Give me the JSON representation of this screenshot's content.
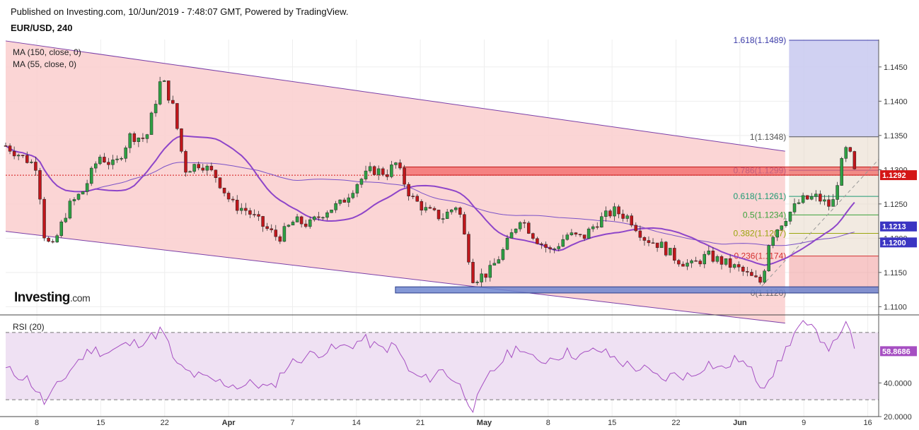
{
  "header": {
    "published": "Published on Investing.com, 10/Jun/2019 - 7:48:07 GMT, Powered by TradingView.",
    "symbol": "EUR/USD, 240"
  },
  "legend": {
    "ma150": "MA (150, close, 0)",
    "ma55": "MA (55, close, 0)",
    "rsi": "RSI (20)"
  },
  "logo": {
    "brand": "Investing",
    "suffix": ".com",
    "icon": "investing-logo-icon"
  },
  "colors": {
    "bull": "#2ea043",
    "bear": "#c0161b",
    "channel_fill": "#fbd0d0",
    "channel_line": "#7b3fa8",
    "ma150": "#7b52c7",
    "ma55": "#8e45c9",
    "fib_box": "#c8c9f0",
    "rsi_line": "#a64fc2",
    "rsi_band": "#efe1f3"
  },
  "chart_data": {
    "type": "candlestick",
    "instrument": "EUR/USD",
    "timeframe": "240",
    "price_axis": {
      "ticks": [
        1.11,
        1.115,
        1.12,
        1.125,
        1.13,
        1.135,
        1.14,
        1.145
      ],
      "tick_labels": [
        "1.1100",
        "1.1150",
        "1.1200",
        "1.1250",
        "1.1300",
        "1.1350",
        "1.1400",
        "1.1450"
      ],
      "range": [
        1.1088,
        1.149
      ]
    },
    "x_axis_labels": [
      "8",
      "15",
      "22",
      "Apr",
      "7",
      "14",
      "21",
      "May",
      "8",
      "15",
      "22",
      "Jun",
      "9",
      "16"
    ],
    "price_badges": [
      {
        "label": "1.1292",
        "value": 1.1292,
        "color": "#d41616"
      },
      {
        "label": "1.1213",
        "value": 1.1213,
        "color": "#3b35c2"
      },
      {
        "label": "1.1200",
        "value": 1.12,
        "color": "#3b35c2"
      }
    ],
    "fibonacci": [
      {
        "label": "1.618(1.1489)",
        "value": 1.1489,
        "color": "#3b3ba8"
      },
      {
        "label": "1(1.1348)",
        "value": 1.1348,
        "color": "#555555"
      },
      {
        "label": "0.786(1.1299)",
        "value": 1.1299,
        "color": "#8888cc"
      },
      {
        "label": "0.618(1.1261)",
        "value": 1.1261,
        "color": "#1e9b73"
      },
      {
        "label": "0.5(1.1234)",
        "value": 1.1234,
        "color": "#3aa23a"
      },
      {
        "label": "0.382(1.1207)",
        "value": 1.1207,
        "color": "#9aa50c"
      },
      {
        "label": "0.236(1.1174)",
        "value": 1.1174,
        "color": "#d43030"
      },
      {
        "label": "0(1.1120)",
        "value": 1.112,
        "color": "#666666"
      }
    ],
    "support_zone": [
      1.112,
      1.1129
    ],
    "resistance_zone": [
      1.1292,
      1.1304
    ],
    "close_line": 1.1292,
    "channel": {
      "upper": [
        [
          0,
          1.1488
        ],
        [
          100,
          1.1327
        ]
      ],
      "lower": [
        [
          0,
          1.121
        ],
        [
          100,
          1.1076
        ]
      ]
    },
    "close_path": [
      [
        0,
        1.1335
      ],
      [
        2,
        1.132
      ],
      [
        4,
        1.1305
      ],
      [
        5,
        1.12
      ],
      [
        6,
        1.1185
      ],
      [
        8,
        1.1245
      ],
      [
        10,
        1.127
      ],
      [
        12,
        1.132
      ],
      [
        14,
        1.1305
      ],
      [
        16,
        1.135
      ],
      [
        18,
        1.1345
      ],
      [
        20,
        1.1435
      ],
      [
        21.5,
        1.139
      ],
      [
        23,
        1.13
      ],
      [
        25,
        1.131
      ],
      [
        27,
        1.129
      ],
      [
        29,
        1.125
      ],
      [
        31,
        1.124
      ],
      [
        33,
        1.1218
      ],
      [
        35,
        1.12
      ],
      [
        37,
        1.1225
      ],
      [
        39,
        1.122
      ],
      [
        41,
        1.124
      ],
      [
        43,
        1.125
      ],
      [
        45,
        1.128
      ],
      [
        47,
        1.13
      ],
      [
        49,
        1.1295
      ],
      [
        50,
        1.131
      ],
      [
        52,
        1.126
      ],
      [
        54,
        1.124
      ],
      [
        56,
        1.123
      ],
      [
        58,
        1.125
      ],
      [
        60,
        1.114
      ],
      [
        62,
        1.115
      ],
      [
        64,
        1.1185
      ],
      [
        66,
        1.123
      ],
      [
        68,
        1.12
      ],
      [
        70,
        1.118
      ],
      [
        72,
        1.1205
      ],
      [
        74,
        1.12
      ],
      [
        76,
        1.1225
      ],
      [
        78,
        1.124
      ],
      [
        80,
        1.123
      ],
      [
        82,
        1.12
      ],
      [
        84,
        1.119
      ],
      [
        86,
        1.117
      ],
      [
        88,
        1.116
      ],
      [
        90,
        1.1175
      ],
      [
        92,
        1.1165
      ],
      [
        94,
        1.1155
      ],
      [
        96,
        1.114
      ],
      [
        97,
        1.1135
      ],
      [
        98,
        1.12
      ],
      [
        100,
        1.123
      ],
      [
        102,
        1.1255
      ],
      [
        104,
        1.126
      ],
      [
        106,
        1.1245
      ],
      [
        107,
        1.13
      ],
      [
        108,
        1.1335
      ],
      [
        109,
        1.1292
      ]
    ],
    "rsi": {
      "range": [
        20,
        80
      ],
      "ticks": [
        20,
        40
      ],
      "tick_labels": [
        "20.0000",
        "40.0000"
      ],
      "guide_levels": [
        30,
        70
      ],
      "last_value": 58.8686,
      "last_label": "58.8686",
      "path": [
        [
          0,
          48
        ],
        [
          3,
          42
        ],
        [
          5,
          28
        ],
        [
          7,
          40
        ],
        [
          9,
          52
        ],
        [
          11,
          60
        ],
        [
          13,
          58
        ],
        [
          15,
          62
        ],
        [
          17,
          64
        ],
        [
          19,
          68
        ],
        [
          20,
          72
        ],
        [
          22,
          50
        ],
        [
          24,
          45
        ],
        [
          26,
          42
        ],
        [
          28,
          40
        ],
        [
          30,
          38
        ],
        [
          32,
          40
        ],
        [
          34,
          36
        ],
        [
          36,
          50
        ],
        [
          38,
          55
        ],
        [
          40,
          58
        ],
        [
          42,
          60
        ],
        [
          44,
          62
        ],
        [
          46,
          66
        ],
        [
          48,
          60
        ],
        [
          50,
          62
        ],
        [
          52,
          45
        ],
        [
          54,
          42
        ],
        [
          56,
          48
        ],
        [
          58,
          40
        ],
        [
          60,
          25
        ],
        [
          62,
          44
        ],
        [
          64,
          55
        ],
        [
          66,
          62
        ],
        [
          68,
          52
        ],
        [
          70,
          55
        ],
        [
          72,
          58
        ],
        [
          74,
          56
        ],
        [
          76,
          60
        ],
        [
          78,
          55
        ],
        [
          80,
          50
        ],
        [
          82,
          48
        ],
        [
          84,
          42
        ],
        [
          86,
          45
        ],
        [
          88,
          44
        ],
        [
          90,
          52
        ],
        [
          92,
          48
        ],
        [
          94,
          55
        ],
        [
          96,
          45
        ],
        [
          97,
          38
        ],
        [
          99,
          50
        ],
        [
          101,
          68
        ],
        [
          102,
          75
        ],
        [
          104,
          70
        ],
        [
          106,
          60
        ],
        [
          107,
          72
        ],
        [
          108,
          74
        ],
        [
          109,
          58.87
        ]
      ]
    }
  }
}
